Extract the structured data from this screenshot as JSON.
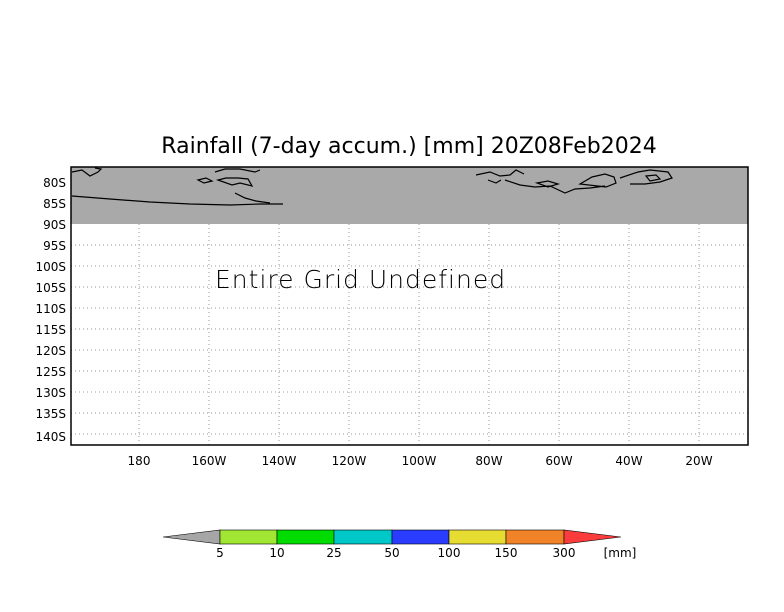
{
  "title": "Rainfall (7-day accum.) [mm] 20Z08Feb2024",
  "message": "Entire Grid Undefined",
  "y_axis": {
    "labels": [
      "80S",
      "85S",
      "90S",
      "95S",
      "100S",
      "105S",
      "110S",
      "115S",
      "120S",
      "125S",
      "130S",
      "135S",
      "140S"
    ]
  },
  "x_axis": {
    "labels": [
      "180",
      "160W",
      "140W",
      "120W",
      "100W",
      "80W",
      "60W",
      "40W",
      "20W"
    ]
  },
  "colors": {
    "land_gray": "#a9a9a9",
    "grid": "#9a9a9a"
  },
  "colorbar": {
    "unit": "[mm]",
    "boundaries": [
      "5",
      "10",
      "25",
      "50",
      "100",
      "150",
      "300"
    ],
    "segments": [
      {
        "color": "#a6a6a6",
        "shape": "arrow-left"
      },
      {
        "color": "#a0e632"
      },
      {
        "color": "#00dc00"
      },
      {
        "color": "#00c8c8"
      },
      {
        "color": "#2a3cff"
      },
      {
        "color": "#e6dc32"
      },
      {
        "color": "#f08228"
      },
      {
        "color": "#fa3c3c",
        "shape": "arrow-right"
      }
    ]
  }
}
